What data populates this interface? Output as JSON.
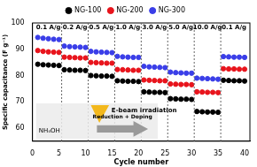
{
  "chart_data": {
    "type": "scatter",
    "x_label": "Cycle number",
    "y_label": "Specific capacitance (F g⁻¹)",
    "x": [
      1,
      2,
      3,
      4,
      5,
      6,
      7,
      8,
      9,
      10,
      11,
      12,
      13,
      14,
      15,
      16,
      17,
      18,
      19,
      20,
      21,
      22,
      23,
      24,
      25,
      26,
      27,
      28,
      29,
      30,
      31,
      32,
      33,
      34,
      35,
      36,
      37,
      38,
      39,
      40
    ],
    "series": [
      {
        "name": "NG-100",
        "color": "#000000",
        "marker": "circle",
        "values": [
          84.3,
          84.1,
          84,
          83.9,
          83.8,
          82.2,
          82.1,
          82,
          82,
          81.9,
          80,
          79.9,
          79.8,
          79.8,
          79.7,
          78,
          77.9,
          77.8,
          77.8,
          77.7,
          73.8,
          73.7,
          73.6,
          73.6,
          73.5,
          71.2,
          71.1,
          71,
          71,
          70.9,
          66.3,
          66.2,
          66.1,
          66.1,
          66,
          78.2,
          78.1,
          78,
          78,
          77.9
        ]
      },
      {
        "name": "NG-200",
        "color": "#e8141c",
        "marker": "circle",
        "values": [
          89.5,
          89.2,
          89,
          88.9,
          88.8,
          87,
          86.9,
          86.8,
          86.7,
          86.7,
          85,
          84.9,
          84.8,
          84.7,
          84.7,
          82.3,
          82.2,
          82.1,
          82,
          82,
          78.3,
          78.2,
          78.1,
          78,
          78,
          76.8,
          76.7,
          76.6,
          76.6,
          76.5,
          73.8,
          73.7,
          73.6,
          73.6,
          73.5,
          82.6,
          82.5,
          82.5,
          82.4,
          82.4
        ]
      },
      {
        "name": "NG-300",
        "color": "#3a3ee8",
        "marker": "circle",
        "values": [
          94.5,
          94.2,
          94,
          93.8,
          93.7,
          91.2,
          91,
          90.9,
          90.8,
          90.7,
          89.2,
          89,
          88.9,
          88.8,
          88.7,
          87.3,
          87.1,
          87,
          86.9,
          86.9,
          83.5,
          83.3,
          83.2,
          83.1,
          83,
          81.3,
          81.1,
          81,
          80.9,
          80.9,
          79,
          78.9,
          78.8,
          78.7,
          78.6,
          87.2,
          87.1,
          87,
          87,
          86.9
        ]
      }
    ],
    "rate_segments": [
      {
        "label": "0.1 A/g",
        "from": 0.5,
        "to": 5.5
      },
      {
        "label": "0.2 A/g",
        "from": 5.5,
        "to": 10.5
      },
      {
        "label": "0.5 A/g",
        "from": 10.5,
        "to": 15.5
      },
      {
        "label": "1.0 A/g",
        "from": 15.5,
        "to": 20.5
      },
      {
        "label": "3.0 A/g",
        "from": 20.5,
        "to": 25.5
      },
      {
        "label": "5.0 A/g",
        "from": 25.5,
        "to": 30.5
      },
      {
        "label": "10.0 A/g",
        "from": 30.5,
        "to": 35.5
      },
      {
        "label": "0.1 A/g",
        "from": 35.5,
        "to": 40.5
      }
    ],
    "annotations": [
      {
        "text": "E-beam irradiation"
      },
      {
        "text": "NH₄OH"
      },
      {
        "text": "Reduction + Doping"
      }
    ],
    "xlim": [
      0,
      41
    ],
    "xticks": [
      0,
      5,
      10,
      15,
      20,
      25,
      30,
      35,
      40
    ],
    "ylim": [
      55,
      100
    ],
    "yticks": [
      60,
      70,
      80,
      90,
      100
    ],
    "legend": "top",
    "grid": false
  }
}
